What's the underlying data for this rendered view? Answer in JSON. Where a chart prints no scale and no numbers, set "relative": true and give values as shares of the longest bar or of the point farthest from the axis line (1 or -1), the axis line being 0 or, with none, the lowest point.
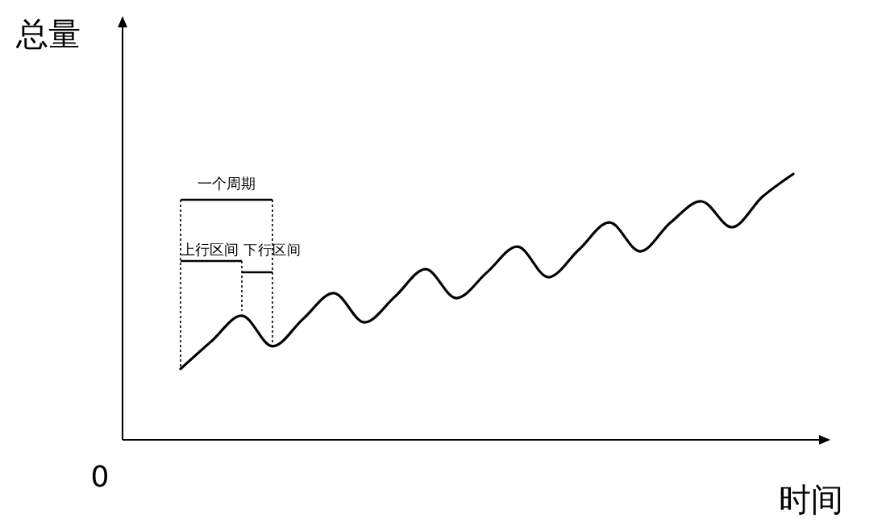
{
  "chart_data": {
    "type": "line",
    "relative": true,
    "xlabel": "时间",
    "ylabel": "总量",
    "color": "#000000",
    "categories": [
      null,
      null,
      null,
      null,
      null,
      null,
      null,
      null,
      null,
      null,
      null,
      null,
      null,
      null,
      null,
      null,
      null,
      null,
      null,
      null,
      null
    ],
    "values": [
      0.267,
      0.37,
      0.467,
      0.352,
      0.455,
      0.552,
      0.442,
      0.539,
      0.642,
      0.533,
      0.63,
      0.727,
      0.612,
      0.715,
      0.818,
      0.709,
      0.818,
      0.897,
      0.8,
      0.915,
      1.0
    ],
    "annotations": [
      "0",
      "一个周期",
      "上行区间",
      "下行区间"
    ]
  }
}
